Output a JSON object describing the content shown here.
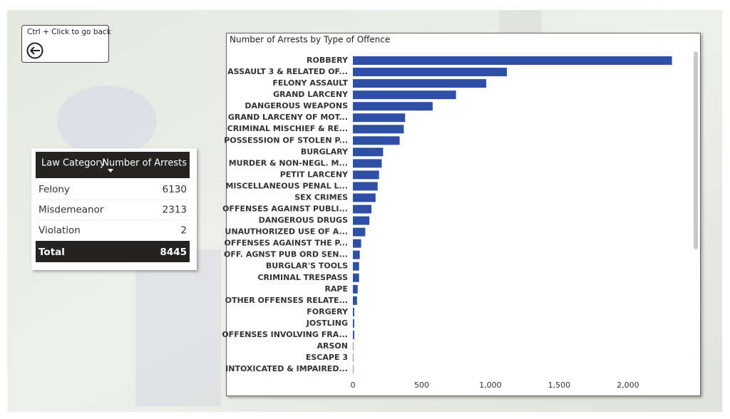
{
  "button": {
    "label": "Ctrl + Click to go back"
  },
  "table": {
    "columns": [
      "Law Category",
      "Number of Arrests"
    ],
    "rows": [
      [
        "Felony",
        6130
      ],
      [
        "Misdemeanor",
        2313
      ],
      [
        "Violation",
        2
      ]
    ],
    "total": [
      "Total",
      8445
    ]
  },
  "chart_data": {
    "type": "bar",
    "orientation": "horizontal",
    "title": "Number of Arrests by Type of Offence",
    "categories": [
      "ROBBERY",
      "ASSAULT 3 & RELATED OF...",
      "FELONY ASSAULT",
      "GRAND LARCENY",
      "DANGEROUS WEAPONS",
      "GRAND LARCENY OF MOT...",
      "CRIMINAL MISCHIEF & RE...",
      "POSSESSION OF STOLEN P...",
      "BURGLARY",
      "MURDER & NON-NEGL. M...",
      "PETIT LARCENY",
      "MISCELLANEOUS PENAL L...",
      "SEX CRIMES",
      "OFFENSES AGAINST PUBLI...",
      "DANGEROUS DRUGS",
      "UNAUTHORIZED USE OF A...",
      "OFFENSES AGAINST THE P...",
      "OFF. AGNST PUB ORD SEN...",
      "BURGLAR'S TOOLS",
      "CRIMINAL TRESPASS",
      "RAPE",
      "OTHER OFFENSES RELATE...",
      "FORGERY",
      "JOSTLING",
      "OFFENSES INVOLVING FRA...",
      "ARSON",
      "ESCAPE 3",
      "INTOXICATED & IMPAIRED..."
    ],
    "values": [
      2320,
      1120,
      970,
      750,
      580,
      380,
      370,
      340,
      220,
      210,
      190,
      180,
      165,
      135,
      120,
      90,
      60,
      50,
      45,
      45,
      35,
      30,
      10,
      10,
      10,
      3,
      3,
      3
    ],
    "color": "#2f4fa6",
    "xlim": [
      0,
      2400
    ],
    "xticks": [
      0,
      500,
      {
        "value": 1000,
        "label": "1,000"
      },
      {
        "value": 1500,
        "label": "1,500"
      },
      {
        "value": 2000,
        "label": "2,000"
      }
    ]
  }
}
